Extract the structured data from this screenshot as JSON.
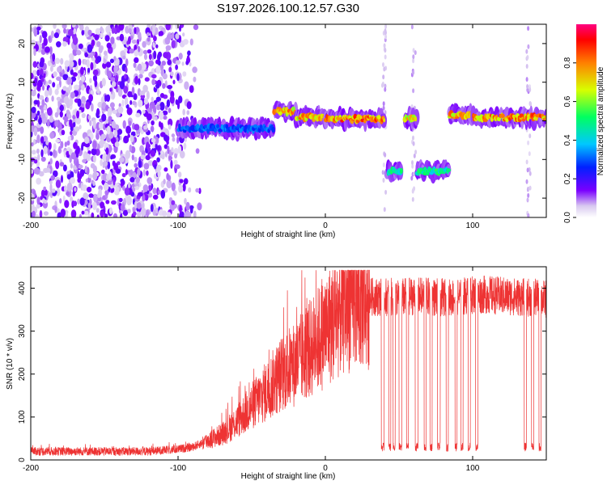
{
  "title": "S197.2026.100.12.57.G30",
  "chart_data": [
    {
      "type": "heatmap",
      "xlabel": "Height of straight line (km)",
      "ylabel": "Frequency (Hz)",
      "xlim": [
        -200,
        150
      ],
      "ylim": [
        -25,
        25
      ],
      "xticks": [
        -200,
        -100,
        0,
        100
      ],
      "yticks": [
        -20,
        -10,
        0,
        10,
        20
      ],
      "colorbar": {
        "label": "Normalized spectral amplitude",
        "range": [
          0,
          1
        ],
        "ticks": [
          "0.0",
          "0.2",
          "0.4",
          "0.6",
          "0.8"
        ]
      },
      "ridge_segments": [
        {
          "x_start": -100,
          "x_end": -35,
          "freq": -2,
          "amplitude": 0.35
        },
        {
          "x_start": -35,
          "x_end": -20,
          "freq": 2.5,
          "amplitude": 0.85
        },
        {
          "x_start": -20,
          "x_end": 0,
          "freq": 1.0,
          "amplitude": 0.85
        },
        {
          "x_start": 0,
          "x_end": 40,
          "freq": 0.5,
          "amplitude": 0.9
        },
        {
          "x_start": 42,
          "x_end": 52,
          "freq": -13,
          "amplitude": 0.55
        },
        {
          "x_start": 54,
          "x_end": 62,
          "freq": 0.5,
          "amplitude": 0.8
        },
        {
          "x_start": 62,
          "x_end": 84,
          "freq": -13,
          "amplitude": 0.55
        },
        {
          "x_start": 84,
          "x_end": 100,
          "freq": 1.5,
          "amplitude": 0.85
        },
        {
          "x_start": 100,
          "x_end": 150,
          "freq": 0.8,
          "amplitude": 0.9
        }
      ]
    },
    {
      "type": "line",
      "xlabel": "Height of straight line (km)",
      "ylabel": "SNR (10 * v/v)",
      "xlim": [
        -200,
        150
      ],
      "ylim": [
        0,
        450
      ],
      "xticks": [
        -200,
        -100,
        0,
        100
      ],
      "yticks": [
        0,
        100,
        200,
        300,
        400
      ],
      "series": [
        {
          "name": "SNR",
          "color": "#ee3333",
          "x": [
            -200,
            -180,
            -160,
            -140,
            -120,
            -100,
            -90,
            -80,
            -70,
            -60,
            -50,
            -40,
            -30,
            -20,
            -10,
            0,
            10,
            20,
            30,
            40,
            50,
            60,
            70,
            80,
            90,
            100,
            110,
            120,
            130,
            140,
            150
          ],
          "values": [
            20,
            20,
            20,
            20,
            20,
            25,
            30,
            45,
            60,
            90,
            125,
            160,
            200,
            225,
            260,
            300,
            350,
            375,
            380,
            380,
            378,
            382,
            380,
            378,
            380,
            385,
            385,
            382,
            380,
            378,
            375
          ]
        }
      ],
      "dropouts": [
        {
          "x_start": 38,
          "x_end": 40,
          "value": 30
        },
        {
          "x_start": 43,
          "x_end": 44.5,
          "value": 30
        },
        {
          "x_start": 46,
          "x_end": 47.5,
          "value": 30
        },
        {
          "x_start": 50,
          "x_end": 52,
          "value": 30
        },
        {
          "x_start": 55,
          "x_end": 56.5,
          "value": 30
        },
        {
          "x_start": 61,
          "x_end": 63,
          "value": 30
        },
        {
          "x_start": 67,
          "x_end": 68.5,
          "value": 30
        },
        {
          "x_start": 71,
          "x_end": 72.5,
          "value": 30
        },
        {
          "x_start": 76,
          "x_end": 78,
          "value": 30
        },
        {
          "x_start": 82,
          "x_end": 83.5,
          "value": 30
        },
        {
          "x_start": 88,
          "x_end": 89.5,
          "value": 30
        },
        {
          "x_start": 92,
          "x_end": 93.5,
          "value": 30
        },
        {
          "x_start": 97,
          "x_end": 98.5,
          "value": 30
        },
        {
          "x_start": 102,
          "x_end": 103.5,
          "value": 30
        },
        {
          "x_start": 135,
          "x_end": 136.5,
          "value": 30
        },
        {
          "x_start": 140,
          "x_end": 141.5,
          "value": 30
        },
        {
          "x_start": 145,
          "x_end": 146.5,
          "value": 30
        }
      ]
    }
  ]
}
